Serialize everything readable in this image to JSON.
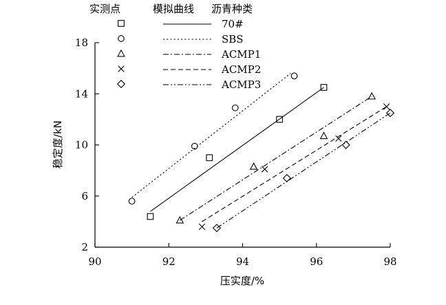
{
  "chart_data": {
    "type": "scatter",
    "legend_header": {
      "points": "实测点",
      "curves": "模拟曲线",
      "asphalt": "沥青种类"
    },
    "xlabel": "压实度/%",
    "ylabel": "稳定度/kN",
    "xlim": [
      90,
      98
    ],
    "ylim": [
      2,
      18
    ],
    "xticks": [
      90,
      92,
      94,
      96,
      98
    ],
    "yticks": [
      2,
      6,
      10,
      14,
      18
    ],
    "grid": false,
    "legend_position": "top",
    "series": [
      {
        "name": "70#",
        "marker": "square",
        "line_style": "solid",
        "points": [
          [
            91.5,
            4.4
          ],
          [
            93.1,
            9.0
          ],
          [
            95.0,
            12.0
          ],
          [
            96.2,
            14.5
          ]
        ],
        "fit_line": [
          [
            91.5,
            4.8
          ],
          [
            96.2,
            14.5
          ]
        ]
      },
      {
        "name": "SBS",
        "marker": "circle",
        "line_style": "dotted",
        "points": [
          [
            91.0,
            5.6
          ],
          [
            92.7,
            9.9
          ],
          [
            93.8,
            12.9
          ],
          [
            95.4,
            15.4
          ]
        ],
        "fit_line": [
          [
            91.0,
            5.9
          ],
          [
            95.3,
            15.6
          ]
        ]
      },
      {
        "name": "ACMP1",
        "marker": "triangle",
        "line_style": "dashdot",
        "points": [
          [
            92.3,
            4.1
          ],
          [
            94.3,
            8.3
          ],
          [
            96.2,
            10.7
          ],
          [
            97.5,
            13.8
          ]
        ],
        "fit_line": [
          [
            92.3,
            4.1
          ],
          [
            97.5,
            13.8
          ]
        ]
      },
      {
        "name": "ACMP2",
        "marker": "cross",
        "line_style": "dashed",
        "points": [
          [
            92.9,
            3.6
          ],
          [
            94.6,
            8.1
          ],
          [
            96.6,
            10.5
          ],
          [
            97.9,
            13.0
          ]
        ],
        "fit_line": [
          [
            92.9,
            4.0
          ],
          [
            97.9,
            13.0
          ]
        ]
      },
      {
        "name": "ACMP3",
        "marker": "diamond",
        "line_style": "dashdotdot",
        "points": [
          [
            93.3,
            3.5
          ],
          [
            95.2,
            7.4
          ],
          [
            96.8,
            10.0
          ],
          [
            98.0,
            12.5
          ]
        ],
        "fit_line": [
          [
            93.3,
            3.5
          ],
          [
            98.0,
            12.5
          ]
        ]
      }
    ]
  }
}
